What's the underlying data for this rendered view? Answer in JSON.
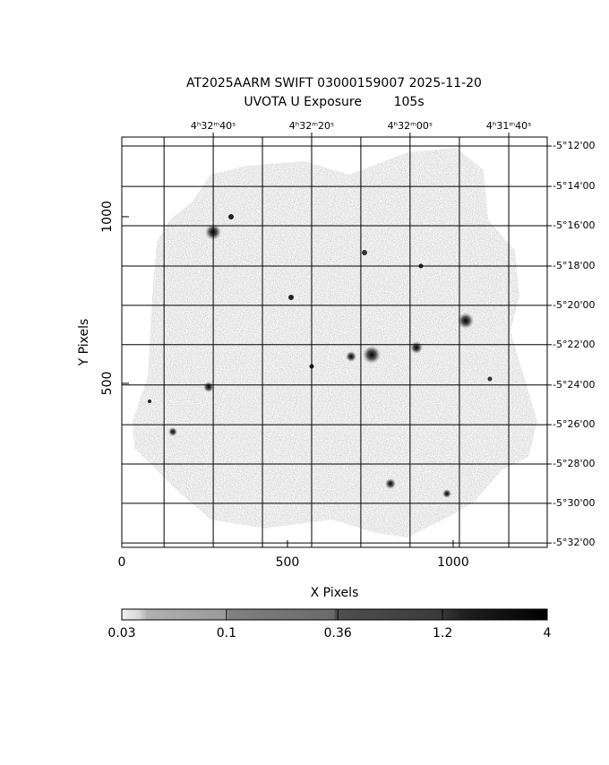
{
  "chart_data": {
    "type": "image",
    "title": "AT2025AARM SWIFT 03000159007 2025-11-20",
    "subtitle": "UVOTA U Exposure        105s",
    "x_label": "X Pixels",
    "y_label": "Y Pixels",
    "xlim": [
      0,
      1284
    ],
    "ylim": [
      8,
      1239
    ],
    "xticks": [
      0,
      500,
      1000
    ],
    "yticks": [
      500,
      1000
    ],
    "x2ticks": [
      {
        "value": 276,
        "label": "4ʰ32ᵐ40ˢ"
      },
      {
        "value": 573,
        "label": "4ʰ32ᵐ20ˢ"
      },
      {
        "value": 870,
        "label": "4ʰ32ᵐ00ˢ"
      },
      {
        "value": 1168,
        "label": "4ʰ31ᵐ40ˢ"
      }
    ],
    "y2ticks": [
      {
        "value": 1212,
        "label": "-5°12'00"
      },
      {
        "value": 1091,
        "label": "-5°14'00"
      },
      {
        "value": 973,
        "label": "-5°16'00"
      },
      {
        "value": 852,
        "label": "-5°18'00"
      },
      {
        "value": 734,
        "label": "-5°20'00"
      },
      {
        "value": 616,
        "label": "-5°22'00"
      },
      {
        "value": 495,
        "label": "-5°24'00"
      },
      {
        "value": 376,
        "label": "-5°26'00"
      },
      {
        "value": 258,
        "label": "-5°28'00"
      },
      {
        "value": 140,
        "label": "-5°30'00"
      },
      {
        "value": 21,
        "label": "-5°32'00"
      }
    ],
    "grid": true,
    "colorbar": {
      "lim": [
        0.03,
        4
      ],
      "ticks": [
        0.03,
        0.1,
        0.36,
        1.2,
        4
      ],
      "log": true
    }
  }
}
